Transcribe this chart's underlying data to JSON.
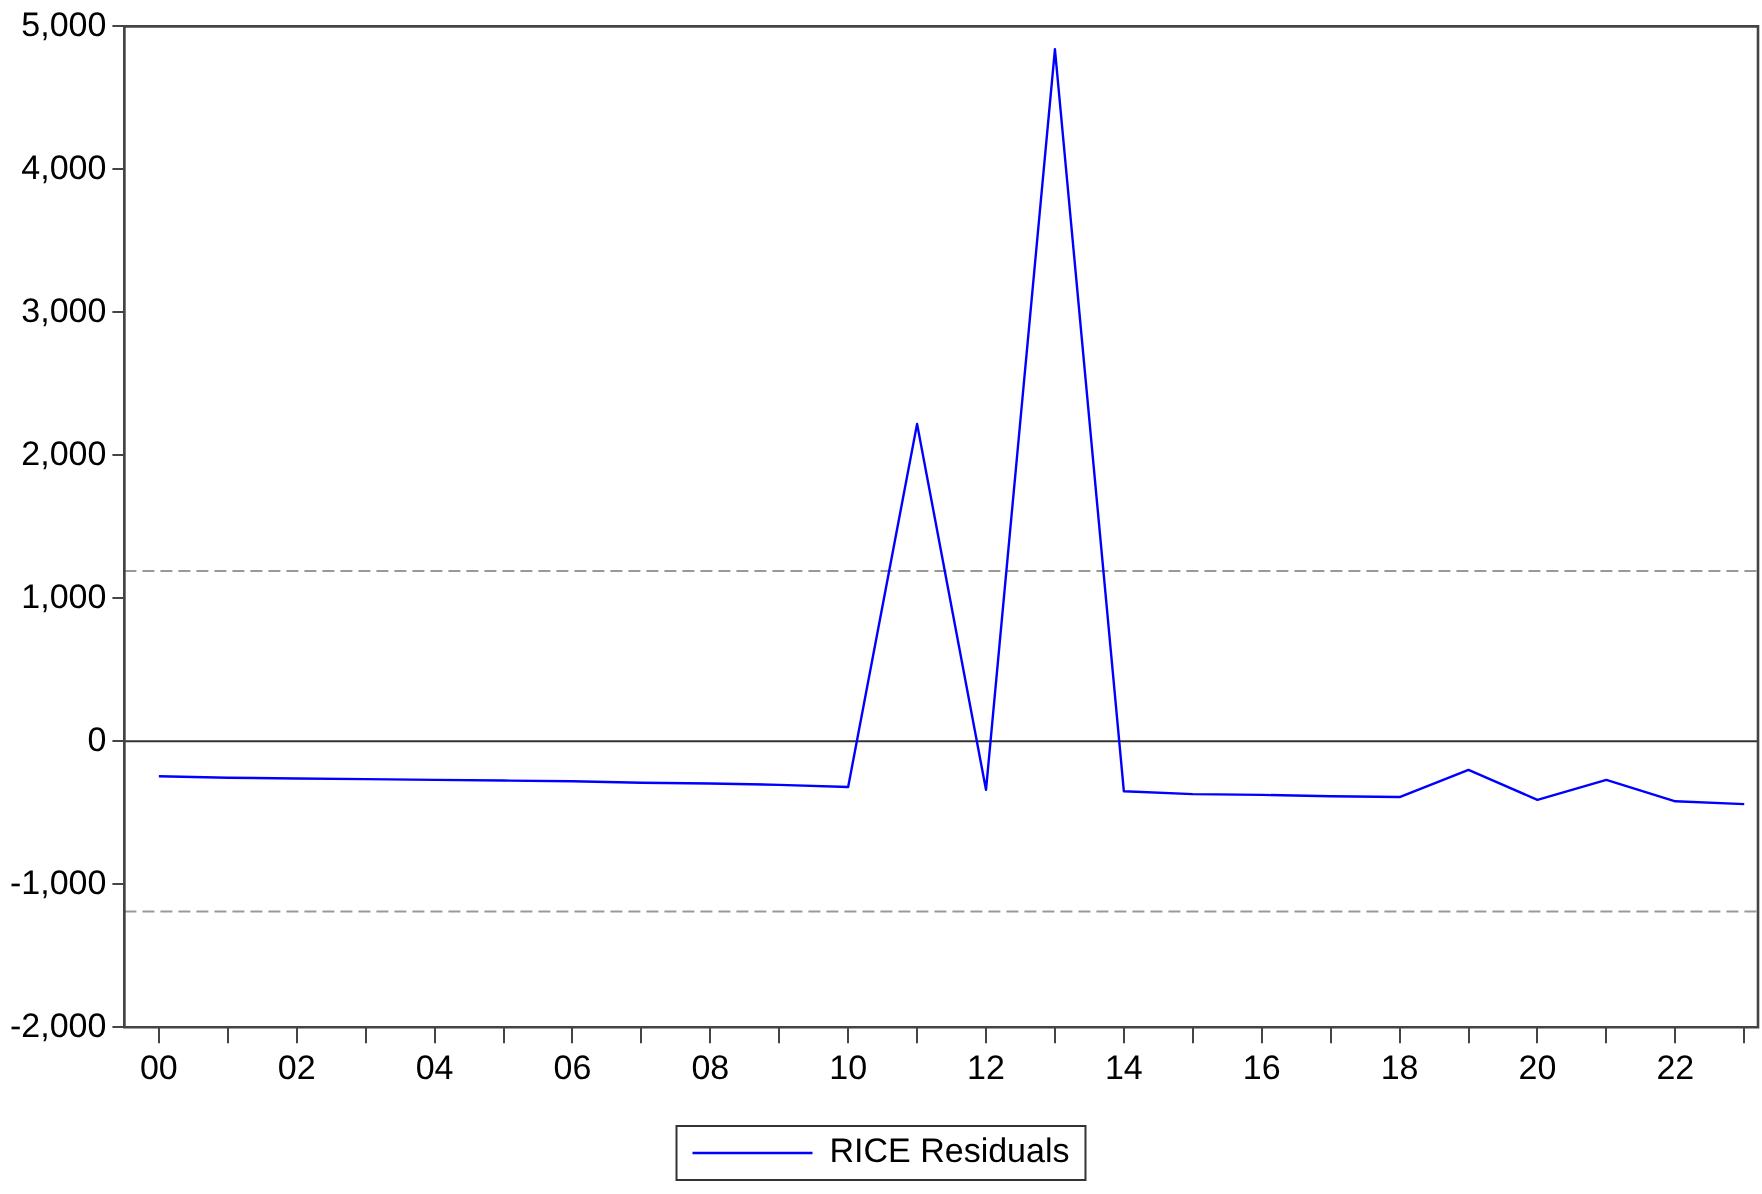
{
  "chart_data": {
    "type": "line",
    "x": [
      2000,
      2001,
      2002,
      2003,
      2004,
      2005,
      2006,
      2007,
      2008,
      2009,
      2010,
      2011,
      2012,
      2013,
      2014,
      2015,
      2016,
      2017,
      2018,
      2019,
      2020,
      2021,
      2022,
      2023
    ],
    "series": [
      {
        "name": "RICE Residuals",
        "color": "#0000ff",
        "values": [
          -245,
          -255,
          -260,
          -265,
          -270,
          -275,
          -280,
          -290,
          -295,
          -305,
          -320,
          2220,
          -340,
          4840,
          -350,
          -370,
          -375,
          -385,
          -390,
          -200,
          -410,
          -270,
          -420,
          -440
        ]
      }
    ],
    "xlim": [
      1999.5,
      2023.2
    ],
    "xticks": [
      {
        "value": 2000,
        "label": "00"
      },
      {
        "value": 2001,
        "label": null
      },
      {
        "value": 2002,
        "label": "02"
      },
      {
        "value": 2003,
        "label": null
      },
      {
        "value": 2004,
        "label": "04"
      },
      {
        "value": 2005,
        "label": null
      },
      {
        "value": 2006,
        "label": "06"
      },
      {
        "value": 2007,
        "label": null
      },
      {
        "value": 2008,
        "label": "08"
      },
      {
        "value": 2009,
        "label": null
      },
      {
        "value": 2010,
        "label": "10"
      },
      {
        "value": 2011,
        "label": null
      },
      {
        "value": 2012,
        "label": "12"
      },
      {
        "value": 2013,
        "label": null
      },
      {
        "value": 2014,
        "label": "14"
      },
      {
        "value": 2015,
        "label": null
      },
      {
        "value": 2016,
        "label": "16"
      },
      {
        "value": 2017,
        "label": null
      },
      {
        "value": 2018,
        "label": "18"
      },
      {
        "value": 2019,
        "label": null
      },
      {
        "value": 2020,
        "label": "20"
      },
      {
        "value": 2021,
        "label": null
      },
      {
        "value": 2022,
        "label": "22"
      },
      {
        "value": 2023,
        "label": null
      }
    ],
    "ylim": [
      -2000,
      5000
    ],
    "yticks": [
      {
        "value": -2000,
        "label": "-2,000"
      },
      {
        "value": -1000,
        "label": "-1,000"
      },
      {
        "value": 0,
        "label": "0"
      },
      {
        "value": 1000,
        "label": "1,000"
      },
      {
        "value": 2000,
        "label": "2,000"
      },
      {
        "value": 3000,
        "label": "3,000"
      },
      {
        "value": 4000,
        "label": "4,000"
      },
      {
        "value": 5000,
        "label": "5,000"
      }
    ],
    "ref_lines": [
      {
        "axis": "y",
        "value": 1190,
        "color": "#999999",
        "line_style": "dashed"
      },
      {
        "axis": "y",
        "value": 0,
        "color": "#333333",
        "line_style": "solid"
      },
      {
        "axis": "y",
        "value": -1190,
        "color": "#999999",
        "line_style": "dashed"
      }
    ],
    "grid": false,
    "legend": "bottom",
    "marker": "none",
    "line_style": "solid"
  }
}
